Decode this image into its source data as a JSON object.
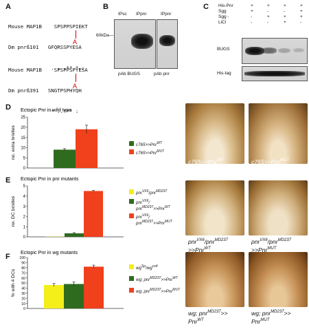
{
  "panels": {
    "A": "A",
    "B": "B",
    "C": "C",
    "D": "D",
    "E": "E",
    "F": "F"
  },
  "panel_a": {
    "seq1": {
      "species": "Mouse MAP1B",
      "seq": "SPSPPSPIEKT",
      "name": "Dm pnrß101",
      "seq2": "GFQRSSPYESA",
      "cons": ". . .** *.:",
      "mut": "A"
    },
    "seq2": {
      "species": "Mouse MAP1B",
      "seq": "SPSPPSPYESA",
      "name": "Dm pnrß391",
      "seq2": "SNGTPSPHYQH",
      "cons": "* ..*** :",
      "mut": "A"
    }
  },
  "panel_b": {
    "lanes": [
      "IPsc",
      "IPpnr",
      "IPpnr"
    ],
    "marker": "60kDa—",
    "ab1": "pAb BUGS",
    "ab2": "pAb pnr"
  },
  "panel_c": {
    "rows": [
      {
        "label": "His-Pnr",
        "marks": [
          "+",
          "+",
          "+",
          "+"
        ]
      },
      {
        "label": "Sgg",
        "marks": [
          "+",
          "-",
          "-",
          "+"
        ]
      },
      {
        "label": "Sgg -",
        "marks": [
          "-",
          "+",
          "+",
          "+"
        ]
      },
      {
        "label": "LiCl",
        "marks": [
          "-",
          "-",
          "+",
          "-"
        ]
      }
    ],
    "blot1": "BUGS",
    "blot2": "His-tag"
  },
  "chart_data": [
    {
      "type": "bar",
      "title": "Ectopic Pnr in wild type",
      "ylabel": "no. extra bristles",
      "ylim": [
        0,
        25
      ],
      "yticks": [
        0,
        5,
        10,
        15,
        20,
        25
      ],
      "categories": [
        "c765>>PnrWT",
        "c765>>PnrMUT"
      ],
      "values": [
        9,
        19
      ],
      "errors": [
        0.5,
        2
      ],
      "colors": [
        "#2f6b1f",
        "#f0401c"
      ]
    },
    {
      "type": "bar",
      "title": "Ectopic Pnr in pnr mutants",
      "ylabel": "no. DC bristles",
      "ylim": [
        0,
        5
      ],
      "yticks": [
        0,
        1,
        2,
        3,
        4,
        5
      ],
      "categories": [
        "pnrVX6/pnrMD237",
        "pnrVX6/pnrMD237>>PnrWT",
        "pnrVX6/pnrMD237>>PnrMUT"
      ],
      "values": [
        0.02,
        0.35,
        4.5
      ],
      "errors": [
        0,
        0.06,
        0.05
      ],
      "colors": [
        "#f4ee1a",
        "#2f6b1f",
        "#f0401c"
      ]
    },
    {
      "type": "bar",
      "title": "Ectopic Pnr in wg mutants",
      "ylabel": "% with 4 DCs",
      "ylim": [
        0,
        100
      ],
      "yticks": [
        0,
        10,
        20,
        30,
        40,
        50,
        60,
        70,
        80,
        90,
        100
      ],
      "categories": [
        "wgSp/wgcx4",
        "wg; pnrMD237>>PnrWT",
        "wg; pnrMD237>>PnrMUT"
      ],
      "values": [
        46,
        48,
        82
      ],
      "errors": [
        3,
        4,
        3
      ],
      "colors": [
        "#f4ee1a",
        "#2f6b1f",
        "#f0401c"
      ]
    }
  ],
  "legends": {
    "d": [
      {
        "base": "c765>>Pnr",
        "sup": "WT"
      },
      {
        "base": "c765>>Pnr",
        "sup": "MUT"
      }
    ],
    "e": [
      {
        "l1": "pnr",
        "s1": "VX6",
        "l2": "/pnr",
        "s2": "MD237",
        "l3": ""
      },
      {
        "l1": "pnr",
        "s1": "VX6",
        "l2": "/",
        "s2": "",
        "l3": "pnr",
        "s3": "MD237",
        "l4": ">>Pnr",
        "s4": "WT"
      },
      {
        "l1": "pnr",
        "s1": "VX6",
        "l2": "/",
        "s2": "",
        "l3": "pnr",
        "s3": "MD237",
        "l4": ">>Pnr",
        "s4": "MUT"
      }
    ],
    "f": [
      {
        "l1": "wg",
        "s1": "Sp",
        "l2": "/wg",
        "s2": "cx4"
      },
      {
        "l1": "wg; pnr",
        "s1": "MD237",
        "l2": ">>Pnr",
        "s2": "WT"
      },
      {
        "l1": "wg; pnr",
        "s1": "MD237",
        "l2": ">>Pnr",
        "s2": "MUT"
      }
    ]
  },
  "photo_captions": {
    "d1": {
      "a": "c765>>Pnr",
      "sup": "WT"
    },
    "d2": {
      "a": "c765>>Pnr",
      "sup": "MUT"
    },
    "e1": {
      "a": "pnr",
      "s1": "VX6",
      "b": "/pnr",
      "s2": "MD237",
      "c": ">>Pnr",
      "s3": "WT"
    },
    "e2": {
      "a": "pnr",
      "s1": "VX6",
      "b": "/pnr",
      "s2": "MD237",
      "c": ">>Pnr",
      "s3": "MUT"
    },
    "f1": {
      "a": "wg; pnr",
      "s1": "MD237",
      "b": ">>",
      "c": "Pnr",
      "s3": "WT"
    },
    "f2": {
      "a": "wg; pnr",
      "s1": "MD237",
      "b": ">>",
      "c": "Pnr",
      "s3": "MUT"
    }
  }
}
